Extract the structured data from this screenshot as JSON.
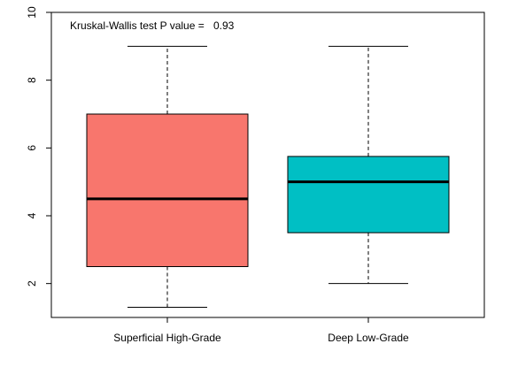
{
  "chart_data": {
    "type": "boxplot",
    "title": "",
    "xlabel": "",
    "ylabel": "",
    "ylim": [
      1,
      10
    ],
    "y_ticks": [
      2,
      4,
      6,
      8,
      10
    ],
    "grid": false,
    "categories": [
      "Superficial High-Grade",
      "Deep Low-Grade"
    ],
    "boxes": [
      {
        "category": "Superficial High-Grade",
        "min": 1.3,
        "q1": 2.5,
        "median": 4.5,
        "q3": 7.0,
        "max": 9.0,
        "color": "#F8766D"
      },
      {
        "category": "Deep Low-Grade",
        "min": 2.0,
        "q1": 3.5,
        "median": 5.0,
        "q3": 5.75,
        "max": 9.0,
        "color": "#00BFC4"
      }
    ],
    "annotation": {
      "label": "Kruskal-Wallis test P value =",
      "value": "0.93"
    }
  }
}
